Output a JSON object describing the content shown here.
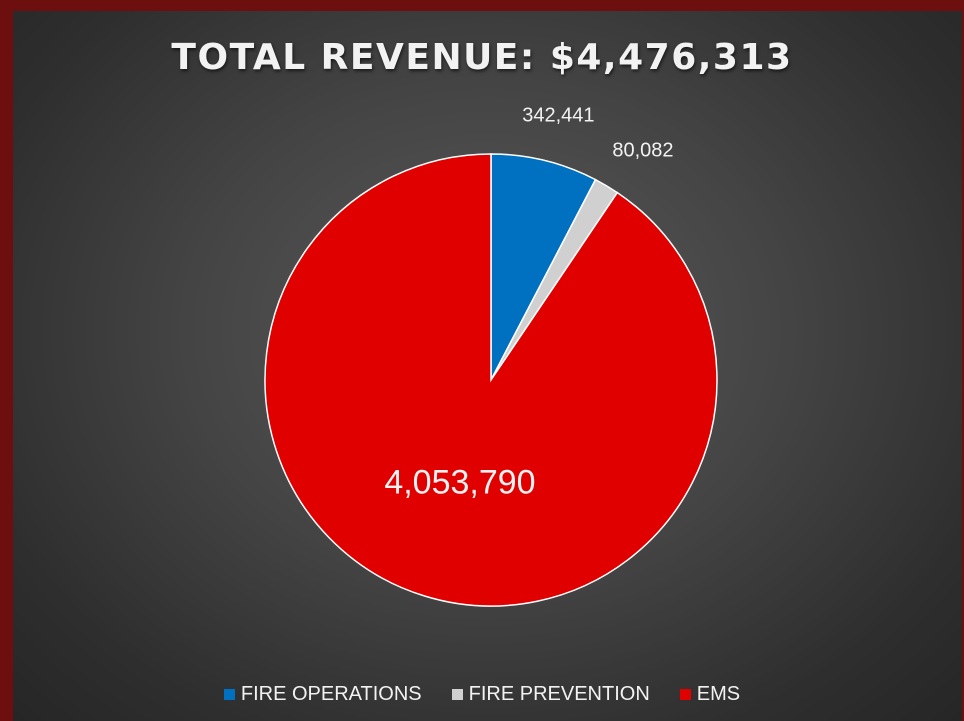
{
  "chart_data": {
    "type": "pie",
    "title": "TOTAL REVENUE: $4,476,313",
    "categories": [
      "FIRE OPERATIONS",
      "FIRE PREVENTION",
      "EMS"
    ],
    "values": [
      342441,
      80082,
      4053790
    ],
    "data_labels": [
      "342,441",
      "80,082",
      "4,053,790"
    ],
    "colors": [
      "#0070c0",
      "#d0d0d0",
      "#e00000"
    ],
    "legend_position": "bottom"
  }
}
